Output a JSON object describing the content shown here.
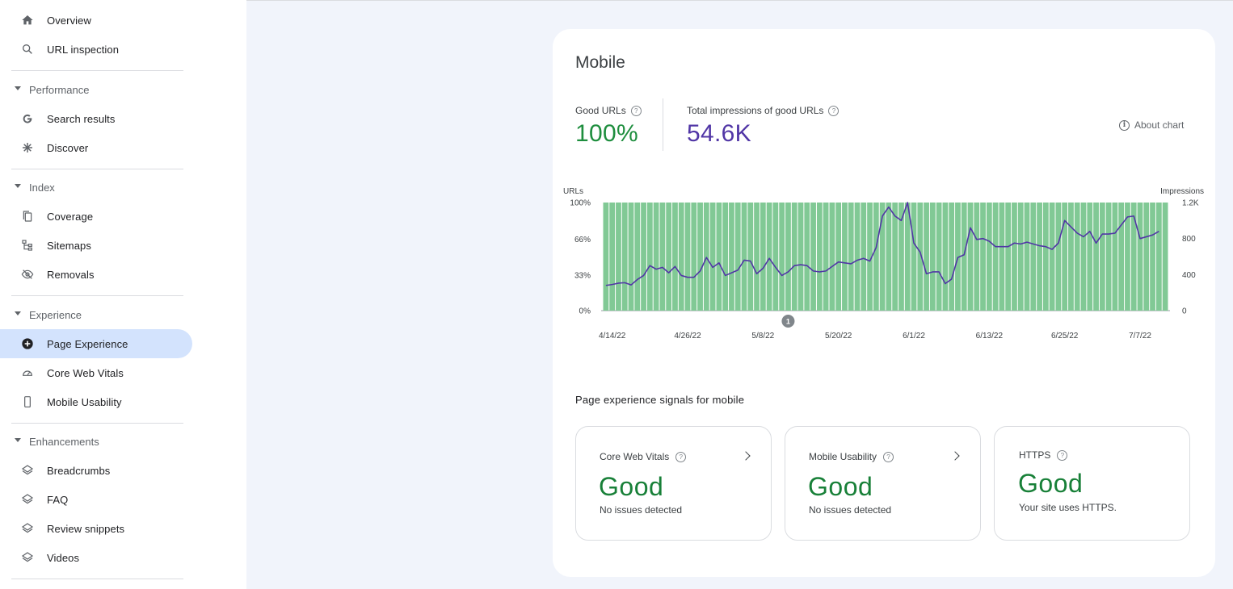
{
  "sidebar": {
    "top_items": [
      {
        "label": "Overview",
        "icon": "home-icon"
      },
      {
        "label": "URL inspection",
        "icon": "search-icon"
      }
    ],
    "sections": [
      {
        "label": "Performance",
        "items": [
          {
            "label": "Search results",
            "icon": "google-g-icon"
          },
          {
            "label": "Discover",
            "icon": "asterisk-icon"
          }
        ]
      },
      {
        "label": "Index",
        "items": [
          {
            "label": "Coverage",
            "icon": "copy-pages-icon"
          },
          {
            "label": "Sitemaps",
            "icon": "sitemap-icon"
          },
          {
            "label": "Removals",
            "icon": "eye-off-icon"
          }
        ]
      },
      {
        "label": "Experience",
        "items": [
          {
            "label": "Page Experience",
            "icon": "plus-circle-icon",
            "active": true
          },
          {
            "label": "Core Web Vitals",
            "icon": "speedometer-icon"
          },
          {
            "label": "Mobile Usability",
            "icon": "phone-icon"
          }
        ]
      },
      {
        "label": "Enhancements",
        "items": [
          {
            "label": "Breadcrumbs",
            "icon": "layers-icon"
          },
          {
            "label": "FAQ",
            "icon": "layers-icon"
          },
          {
            "label": "Review snippets",
            "icon": "layers-icon"
          },
          {
            "label": "Videos",
            "icon": "layers-icon"
          }
        ]
      }
    ]
  },
  "card": {
    "title": "Mobile",
    "metrics": [
      {
        "label": "Good URLs",
        "value": "100%",
        "color": "#1e8e3e"
      },
      {
        "label": "Total impressions of good URLs",
        "value": "54.6K",
        "color": "#5136a6"
      }
    ],
    "about_chart": "About chart",
    "signals_title": "Page experience signals for mobile",
    "signals": [
      {
        "name": "Core Web Vitals",
        "status": "Good",
        "desc": "No issues detected",
        "has_link": true
      },
      {
        "name": "Mobile Usability",
        "status": "Good",
        "desc": "No issues detected",
        "has_link": true
      },
      {
        "name": "HTTPS",
        "status": "Good",
        "desc": "Your site uses HTTPS.",
        "has_link": false
      }
    ]
  },
  "chart_data": {
    "type": "bar",
    "left_axis_label": "URLs",
    "right_axis_label": "Impressions",
    "left_ticks": [
      "0%",
      "33%",
      "66%",
      "100%"
    ],
    "left_tick_values": [
      0,
      33,
      66,
      100
    ],
    "right_ticks": [
      "0",
      "400",
      "800",
      "1.2K"
    ],
    "right_tick_values": [
      0,
      400,
      800,
      1200
    ],
    "x_tick_labels": [
      "4/14/22",
      "4/26/22",
      "5/8/22",
      "5/20/22",
      "6/1/22",
      "6/13/22",
      "6/25/22",
      "7/7/22"
    ],
    "x_tick_day_index": [
      1,
      13,
      25,
      37,
      49,
      61,
      73,
      85
    ],
    "annotation_label": "1",
    "annotation_day_index": 29,
    "bar_color": "#81c995",
    "line_color": "#5136a6",
    "series": [
      {
        "name": "URLs",
        "axis": "left",
        "values": [
          100,
          100,
          100,
          100,
          100,
          100,
          100,
          100,
          100,
          100,
          100,
          100,
          100,
          100,
          100,
          100,
          100,
          100,
          100,
          100,
          100,
          100,
          100,
          100,
          100,
          100,
          100,
          100,
          100,
          100,
          100,
          100,
          100,
          100,
          100,
          100,
          100,
          100,
          100,
          100,
          100,
          100,
          100,
          100,
          100,
          100,
          100,
          100,
          100,
          100,
          100,
          100,
          100,
          100,
          100,
          100,
          100,
          100,
          100,
          100,
          100,
          100,
          100,
          100,
          100,
          100,
          100,
          100,
          100,
          100,
          100,
          100,
          100,
          100,
          100,
          100,
          100,
          100,
          100,
          100,
          100,
          100,
          100,
          100,
          100,
          100,
          100,
          100,
          100,
          100
        ]
      },
      {
        "name": "Impressions",
        "axis": "right",
        "values": [
          280,
          290,
          305,
          310,
          285,
          345,
          390,
          500,
          460,
          480,
          420,
          490,
          390,
          370,
          370,
          440,
          590,
          480,
          530,
          390,
          420,
          450,
          560,
          550,
          410,
          470,
          580,
          480,
          390,
          430,
          500,
          510,
          500,
          440,
          430,
          440,
          490,
          540,
          530,
          520,
          560,
          580,
          550,
          700,
          1050,
          1150,
          1050,
          1000,
          1200,
          750,
          650,
          410,
          430,
          430,
          300,
          350,
          590,
          620,
          920,
          790,
          800,
          770,
          710,
          710,
          710,
          750,
          740,
          760,
          740,
          720,
          710,
          680,
          750,
          1000,
          930,
          860,
          820,
          880,
          750,
          850,
          850,
          860,
          950,
          1040,
          1050,
          800,
          820,
          840,
          880
        ]
      }
    ]
  }
}
